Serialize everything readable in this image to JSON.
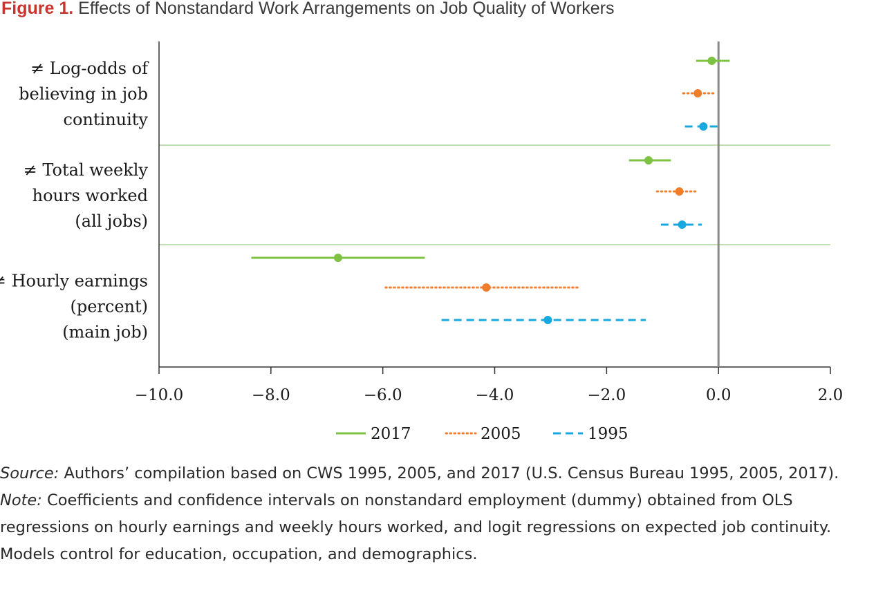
{
  "figure": {
    "label": "Figure 1.",
    "title": "Effects of Nonstandard Work Arrangements on Job Quality of Workers"
  },
  "chart_data": {
    "type": "scatter",
    "subtype": "coefficient-plot-with-confidence-intervals",
    "orientation": "horizontal",
    "x": {
      "range": [
        -10.0,
        2.0
      ],
      "ticks": [
        -10.0,
        -8.0,
        -6.0,
        -4.0,
        -2.0,
        0.0,
        2.0
      ],
      "tick_labels": [
        "−10.0",
        "−8.0",
        "−6.0",
        "−4.0",
        "−2.0",
        "0.0",
        "2.0"
      ],
      "reference_line": 0.0
    },
    "groups": [
      {
        "label_lines": [
          "≠ Log-odds of",
          "believing in job",
          "continuity"
        ]
      },
      {
        "label_lines": [
          "≠ Total weekly",
          "hours worked",
          "(all jobs)"
        ]
      },
      {
        "label_lines": [
          "≠ Hourly earnings",
          "(percent)",
          "(main job)"
        ]
      }
    ],
    "series": [
      {
        "name": "2017",
        "color": "#7dc242",
        "line_style": "solid",
        "estimates": [
          -0.12,
          -1.25,
          -6.8
        ],
        "ci_low": [
          -0.4,
          -1.6,
          -8.35
        ],
        "ci_high": [
          0.2,
          -0.85,
          -5.25
        ]
      },
      {
        "name": "2005",
        "color": "#ef7d2a",
        "line_style": "dotted",
        "estimates": [
          -0.37,
          -0.7,
          -4.15
        ],
        "ci_low": [
          -0.63,
          -1.1,
          -5.95
        ],
        "ci_high": [
          -0.08,
          -0.38,
          -2.5
        ]
      },
      {
        "name": "1995",
        "color": "#18a8e0",
        "line_style": "dashed",
        "estimates": [
          -0.27,
          -0.65,
          -3.05
        ],
        "ci_low": [
          -0.6,
          -1.03,
          -4.95
        ],
        "ci_high": [
          0.0,
          -0.3,
          -1.3
        ]
      }
    ],
    "grid": false,
    "legend_position": "bottom-center"
  },
  "notes": {
    "source_label": "Source:",
    "source_text": " Authors’ compilation based on CWS 1995, 2005, and 2017 (U.S. Census Bureau 1995, 2005, 2017).",
    "note_label": "Note:",
    "note_text": " Coefficients and confidence intervals on nonstandard employment (dummy) obtained from OLS regressions on hourly earnings and weekly hours worked, and logit regressions on expected job continuity. Models control for education, occupation, and demographics."
  }
}
